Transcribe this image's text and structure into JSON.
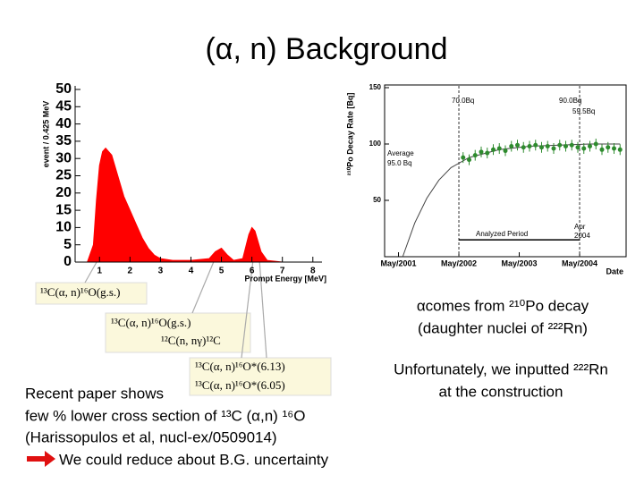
{
  "title": "(α, n) Background",
  "chart_data": [
    {
      "type": "area",
      "xlabel": "Prompt Energy [MeV]",
      "ylabel": "event / 0.425 MeV",
      "color": "#ff0000",
      "x": [
        0.6,
        0.8,
        0.9,
        1.0,
        1.1,
        1.2,
        1.4,
        1.6,
        1.8,
        2.0,
        2.2,
        2.4,
        2.6,
        2.8,
        3.0,
        3.4,
        4.0,
        4.6,
        4.8,
        5.0,
        5.2,
        5.4,
        5.7,
        5.9,
        6.0,
        6.1,
        6.3,
        6.5,
        7.0
      ],
      "values": [
        0,
        5,
        18,
        28,
        32,
        33,
        31,
        25,
        19,
        15,
        11,
        7,
        4,
        2,
        1,
        0.5,
        0.5,
        1,
        3,
        4,
        2,
        0.5,
        1,
        8,
        10,
        9,
        3,
        0.5,
        0
      ],
      "xlim": [
        0.2,
        8.3
      ],
      "xticks": [
        1,
        2,
        3,
        4,
        5,
        6,
        7,
        8
      ],
      "ylim": [
        0,
        50
      ],
      "yticks": [
        0,
        5,
        10,
        15,
        20,
        25,
        30,
        35,
        40,
        45,
        50
      ]
    },
    {
      "type": "scatter",
      "xlabel": "Date",
      "ylabel": "²¹⁰Po Decay Rate [Bq]",
      "color": "#2e8b2e",
      "x": [
        2002.4,
        2002.5,
        2002.6,
        2002.7,
        2002.8,
        2002.9,
        2003.0,
        2003.1,
        2003.2,
        2003.3,
        2003.4,
        2003.5,
        2003.6,
        2003.7,
        2003.8,
        2003.9,
        2004.0,
        2004.1,
        2004.2,
        2004.3,
        2004.4,
        2004.5,
        2004.6,
        2004.7,
        2004.8,
        2004.9,
        2005.0
      ],
      "values": [
        88,
        86,
        90,
        93,
        92,
        95,
        96,
        94,
        98,
        99,
        97,
        98,
        99,
        97,
        98,
        96,
        99,
        98,
        99,
        97,
        96,
        98,
        100,
        95,
        97,
        96,
        95
      ],
      "fit": {
        "x": [
          2001.4,
          2001.6,
          2001.8,
          2002.0,
          2002.2,
          2002.5,
          2003.0,
          2003.5,
          2004.0,
          2004.5,
          2005.0
        ],
        "values": [
          0,
          30,
          52,
          68,
          79,
          88,
          95,
          98,
          99,
          100,
          100
        ]
      },
      "period": [
        2002.33,
        2004.33
      ],
      "period_level": 15,
      "xlim": [
        2001.1,
        2005.1
      ],
      "xticks": [
        {
          "value": 2001.33,
          "label": "May/2001"
        },
        {
          "value": 2002.33,
          "label": "May/2002"
        },
        {
          "value": 2003.33,
          "label": "May/2003"
        },
        {
          "value": 2004.33,
          "label": "May/2004"
        }
      ],
      "ylim": [
        0,
        150
      ],
      "yticks": [
        50,
        100,
        150
      ],
      "annotations": [
        "70.0Bq",
        "90.0Bq",
        "59.5Bq",
        "Average",
        "95.0 Bq",
        "Analyzed Period",
        "Apr",
        "2004"
      ]
    }
  ],
  "reactions": [
    "¹³C(α, n)¹⁶O(g.s.)",
    "¹³C(α, n)¹⁶O(g.s.)",
    "¹²C(n, nγ)¹²C",
    "¹³C(α, n)¹⁶O*(6.13)",
    "¹³C(α, n)¹⁶O*(6.05)"
  ],
  "po_note": [
    "αcomes from ²¹⁰Po decay",
    "(daughter nuclei of ²²²Rn)"
  ],
  "rn_note": [
    "Unfortunately, we inputted ²²²Rn",
    "at the construction"
  ],
  "paper_note": [
    "Recent paper shows",
    "few % lower cross section of ¹³C (α,n) ¹⁶O",
    "(Harissopulos et al, nucl-ex/0509014)",
    "We could reduce about B.G. uncertainty"
  ]
}
